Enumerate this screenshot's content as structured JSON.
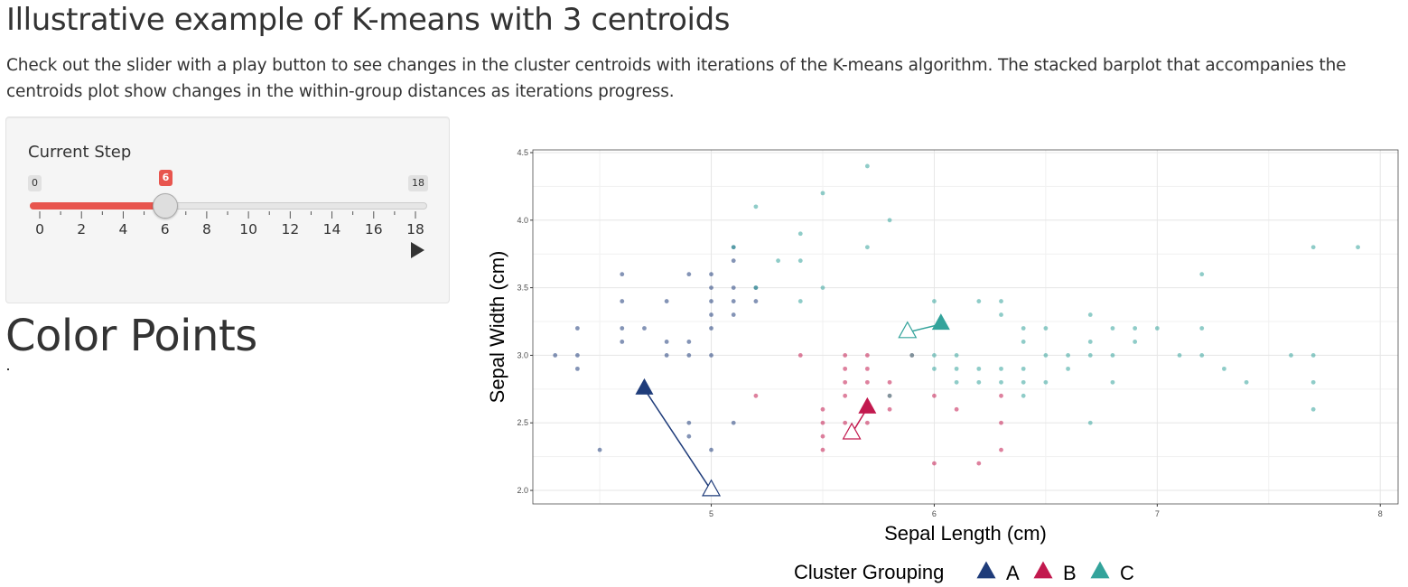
{
  "page": {
    "title": "Illustrative example of K-means with 3 centroids",
    "description": "Check out the slider with a play button to see changes in the cluster centroids with iterations of the K-means algorithm. The stacked barplot that accompanies the centroids plot show changes in the within-group distances as iterations progress."
  },
  "slider": {
    "label": "Current Step",
    "min": 0,
    "max": 18,
    "value": 6,
    "min_label": "0",
    "max_label": "18",
    "value_label": "6",
    "tick_labels": [
      "0",
      "2",
      "4",
      "6",
      "8",
      "10",
      "12",
      "14",
      "16",
      "18"
    ],
    "fill_color": "#e8554e",
    "play_icon": "play-icon"
  },
  "color_points": {
    "heading": "Color Points"
  },
  "chart_data": {
    "type": "scatter",
    "title": "",
    "xlabel": "Sepal Length (cm)",
    "ylabel": "Sepal Width (cm)",
    "xlim": [
      4.2,
      8.08
    ],
    "ylim": [
      1.9,
      4.52
    ],
    "x_ticks": [
      "5",
      "6",
      "7",
      "8"
    ],
    "y_ticks": [
      "2.0",
      "2.5",
      "3.0",
      "3.5",
      "4.0",
      "4.5"
    ],
    "grid": true,
    "legend": {
      "title": "Cluster Grouping",
      "position": "bottom",
      "entries": [
        {
          "label": "A",
          "color": "#1f3c7a"
        },
        {
          "label": "B",
          "color": "#c2194e"
        },
        {
          "label": "C",
          "color": "#33a39b"
        }
      ]
    },
    "series": [
      {
        "name": "A",
        "color": "#1f3c7a",
        "points": [
          [
            4.3,
            3.0
          ],
          [
            4.4,
            2.9
          ],
          [
            4.4,
            3.0
          ],
          [
            4.4,
            3.2
          ],
          [
            4.6,
            3.1
          ],
          [
            4.6,
            3.2
          ],
          [
            4.6,
            3.4
          ],
          [
            4.6,
            3.6
          ],
          [
            4.7,
            3.2
          ],
          [
            4.8,
            3.0
          ],
          [
            4.8,
            3.1
          ],
          [
            4.8,
            3.4
          ],
          [
            4.9,
            3.0
          ],
          [
            4.9,
            3.1
          ],
          [
            4.9,
            3.6
          ],
          [
            5.0,
            3.0
          ],
          [
            5.0,
            3.2
          ],
          [
            5.0,
            3.3
          ],
          [
            5.0,
            3.4
          ],
          [
            5.0,
            3.5
          ],
          [
            5.0,
            3.6
          ],
          [
            5.1,
            3.3
          ],
          [
            5.1,
            3.4
          ],
          [
            5.1,
            3.5
          ],
          [
            5.1,
            3.7
          ],
          [
            5.1,
            3.8
          ],
          [
            5.2,
            3.4
          ],
          [
            5.2,
            3.5
          ],
          [
            4.5,
            2.3
          ],
          [
            4.9,
            2.4
          ],
          [
            4.9,
            2.5
          ],
          [
            5.0,
            2.3
          ],
          [
            5.0,
            2.0
          ],
          [
            5.1,
            2.5
          ]
        ]
      },
      {
        "name": "B",
        "color": "#c2194e",
        "points": [
          [
            5.2,
            2.7
          ],
          [
            5.4,
            3.0
          ],
          [
            5.5,
            2.3
          ],
          [
            5.5,
            2.4
          ],
          [
            5.5,
            2.5
          ],
          [
            5.5,
            2.6
          ],
          [
            5.6,
            2.5
          ],
          [
            5.6,
            2.7
          ],
          [
            5.6,
            2.8
          ],
          [
            5.6,
            2.9
          ],
          [
            5.6,
            3.0
          ],
          [
            5.7,
            2.5
          ],
          [
            5.7,
            2.6
          ],
          [
            5.7,
            2.8
          ],
          [
            5.7,
            2.9
          ],
          [
            5.7,
            3.0
          ],
          [
            5.8,
            2.6
          ],
          [
            5.8,
            2.7
          ],
          [
            5.8,
            2.8
          ],
          [
            5.9,
            3.0
          ],
          [
            6.0,
            2.2
          ],
          [
            6.0,
            2.7
          ],
          [
            6.1,
            2.6
          ],
          [
            6.2,
            2.2
          ],
          [
            6.3,
            2.3
          ],
          [
            6.3,
            2.5
          ],
          [
            6.3,
            2.7
          ]
        ]
      },
      {
        "name": "C",
        "color": "#33a39b",
        "points": [
          [
            5.2,
            4.1
          ],
          [
            5.4,
            3.9
          ],
          [
            5.5,
            4.2
          ],
          [
            5.7,
            4.4
          ],
          [
            5.8,
            4.0
          ],
          [
            5.7,
            3.8
          ],
          [
            5.1,
            3.8
          ],
          [
            5.3,
            3.7
          ],
          [
            5.4,
            3.7
          ],
          [
            5.4,
            3.4
          ],
          [
            5.5,
            3.5
          ],
          [
            5.2,
            3.5
          ],
          [
            5.8,
            2.7
          ],
          [
            5.9,
            3.0
          ],
          [
            6.0,
            2.9
          ],
          [
            6.0,
            3.0
          ],
          [
            6.0,
            3.4
          ],
          [
            6.1,
            2.8
          ],
          [
            6.1,
            2.9
          ],
          [
            6.1,
            3.0
          ],
          [
            6.2,
            2.8
          ],
          [
            6.2,
            2.9
          ],
          [
            6.2,
            3.4
          ],
          [
            6.3,
            2.8
          ],
          [
            6.3,
            2.9
          ],
          [
            6.3,
            3.3
          ],
          [
            6.3,
            3.4
          ],
          [
            6.4,
            2.7
          ],
          [
            6.4,
            2.8
          ],
          [
            6.4,
            2.9
          ],
          [
            6.4,
            3.1
          ],
          [
            6.4,
            3.2
          ],
          [
            6.5,
            2.8
          ],
          [
            6.5,
            3.0
          ],
          [
            6.5,
            3.2
          ],
          [
            6.6,
            2.9
          ],
          [
            6.6,
            3.0
          ],
          [
            6.7,
            2.5
          ],
          [
            6.7,
            3.0
          ],
          [
            6.7,
            3.1
          ],
          [
            6.7,
            3.3
          ],
          [
            6.8,
            2.8
          ],
          [
            6.8,
            3.0
          ],
          [
            6.8,
            3.2
          ],
          [
            6.9,
            3.1
          ],
          [
            6.9,
            3.2
          ],
          [
            7.0,
            3.2
          ],
          [
            7.1,
            3.0
          ],
          [
            7.2,
            3.0
          ],
          [
            7.2,
            3.2
          ],
          [
            7.2,
            3.6
          ],
          [
            7.3,
            2.9
          ],
          [
            7.4,
            2.8
          ],
          [
            7.6,
            3.0
          ],
          [
            7.7,
            2.6
          ],
          [
            7.7,
            2.8
          ],
          [
            7.7,
            3.0
          ],
          [
            7.7,
            3.8
          ],
          [
            7.9,
            3.8
          ]
        ]
      }
    ],
    "centroids": [
      {
        "cluster": "A",
        "previous": [
          5.0,
          2.0
        ],
        "current": [
          4.7,
          2.75
        ]
      },
      {
        "cluster": "B",
        "previous": [
          5.63,
          2.42
        ],
        "current": [
          5.7,
          2.61
        ]
      },
      {
        "cluster": "C",
        "previous": [
          5.88,
          3.17
        ],
        "current": [
          6.03,
          3.23
        ]
      }
    ]
  }
}
